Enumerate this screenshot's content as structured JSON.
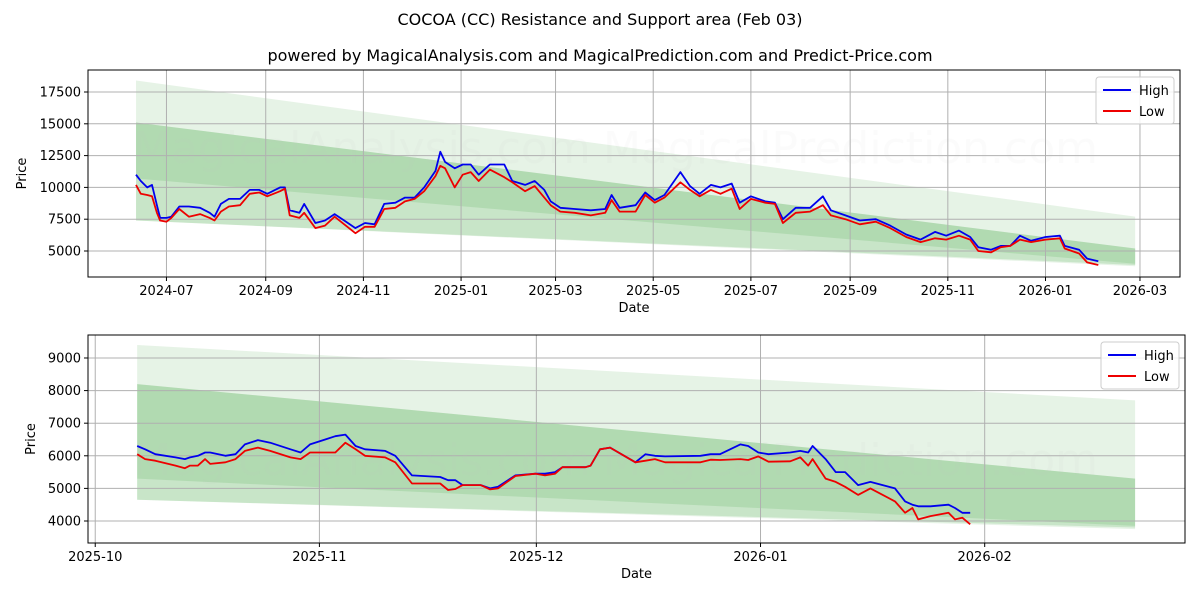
{
  "title": "COCOA (CC) Resistance and Support area (Feb 03)",
  "subtitle": "powered by MagicalAnalysis.com and MagicalPrediction.com and Predict-Price.com",
  "watermarks": [
    "MagicalAnalysis.com",
    "MagicalPrediction.com"
  ],
  "colors": {
    "high": "#0000ee",
    "low": "#ee0000",
    "band": "#2e9e2e"
  },
  "chart_data": [
    {
      "type": "line",
      "xlabel": "Date",
      "ylabel": "Price",
      "x_unit": "days since 2024-07-01",
      "xlim": [
        -49,
        633
      ],
      "ylim": [
        2956,
        19230
      ],
      "grid": true,
      "legend": "top-right",
      "xticks": {
        "values": [
          0,
          62,
          123,
          184,
          243,
          304,
          365,
          427,
          488,
          549,
          608
        ],
        "labels": [
          "2024-07",
          "2024-09",
          "2024-11",
          "2025-01",
          "2025-03",
          "2025-05",
          "2025-07",
          "2025-09",
          "2025-11",
          "2026-01",
          "2026-03"
        ]
      },
      "yticks": {
        "values": [
          5000,
          7500,
          10000,
          12500,
          15000,
          17500
        ],
        "labels": [
          "5000",
          "7500",
          "10000",
          "12500",
          "15000",
          "17500"
        ]
      },
      "bands": [
        {
          "name": "outer",
          "x": [
            -19,
            605
          ],
          "lower": [
            7400,
            3800
          ],
          "upper": [
            18400,
            7700
          ]
        },
        {
          "name": "middle",
          "x": [
            -19,
            605
          ],
          "lower": [
            7400,
            3900
          ],
          "upper": [
            15100,
            5200
          ]
        },
        {
          "name": "inner",
          "x": [
            -19,
            605
          ],
          "lower": [
            10700,
            4000
          ],
          "upper": [
            15100,
            5200
          ]
        }
      ],
      "x": [
        -19,
        -16,
        -12,
        -9,
        -6,
        -4,
        0,
        3,
        8,
        14,
        21,
        27,
        30,
        34,
        39,
        46,
        52,
        58,
        63,
        71,
        74,
        77,
        83,
        86,
        93,
        99,
        105,
        111,
        118,
        124,
        130,
        136,
        143,
        149,
        155,
        161,
        168,
        171,
        174,
        180,
        185,
        190,
        195,
        202,
        211,
        216,
        224,
        230,
        236,
        240,
        246,
        255,
        265,
        274,
        278,
        283,
        293,
        299,
        305,
        311,
        321,
        327,
        333,
        340,
        346,
        353,
        358,
        365,
        374,
        380,
        385,
        393,
        402,
        410,
        415,
        424,
        433,
        443,
        452,
        462,
        471,
        480,
        487,
        495,
        502,
        507,
        515,
        521,
        527,
        533,
        540,
        549,
        558,
        561,
        570,
        575,
        582
      ],
      "series": [
        {
          "name": "High",
          "values": [
            11000,
            10500,
            10000,
            10200,
            8600,
            7600,
            7600,
            7700,
            8500,
            8500,
            8400,
            8000,
            7700,
            8700,
            9100,
            9100,
            9800,
            9800,
            9500,
            10000,
            10000,
            8200,
            8000,
            8700,
            7200,
            7400,
            7900,
            7400,
            6800,
            7200,
            7100,
            8700,
            8800,
            9200,
            9200,
            10000,
            11300,
            12800,
            12000,
            11500,
            11800,
            11800,
            11000,
            11800,
            11800,
            10500,
            10200,
            10500,
            9800,
            8900,
            8400,
            8300,
            8200,
            8300,
            9400,
            8400,
            8600,
            9600,
            9000,
            9400,
            11200,
            10100,
            9500,
            10200,
            10000,
            10300,
            8800,
            9300,
            8900,
            8800,
            7500,
            8400,
            8400,
            9300,
            8200,
            7800,
            7400,
            7500,
            7000,
            6300,
            5900,
            6500,
            6200,
            6600,
            6100,
            5300,
            5100,
            5400,
            5400,
            6200,
            5800,
            6100,
            6200,
            5400,
            5100,
            4400,
            4200
          ]
        },
        {
          "name": "Low",
          "values": [
            10200,
            9500,
            9400,
            9300,
            8000,
            7400,
            7300,
            7600,
            8300,
            7700,
            7900,
            7600,
            7400,
            8100,
            8500,
            8600,
            9500,
            9600,
            9300,
            9700,
            9900,
            7800,
            7600,
            8000,
            6800,
            7000,
            7700,
            7100,
            6400,
            6900,
            6900,
            8300,
            8400,
            8900,
            9100,
            9700,
            10900,
            11700,
            11500,
            10000,
            11000,
            11200,
            10500,
            11400,
            10800,
            10400,
            9700,
            10100,
            9200,
            8600,
            8100,
            8000,
            7800,
            8000,
            9000,
            8100,
            8100,
            9400,
            8800,
            9200,
            10400,
            9800,
            9300,
            9800,
            9500,
            9900,
            8300,
            9100,
            8800,
            8700,
            7200,
            8000,
            8100,
            8600,
            7800,
            7500,
            7100,
            7300,
            6800,
            6100,
            5700,
            6000,
            5900,
            6200,
            5900,
            5000,
            4900,
            5300,
            5400,
            5900,
            5700,
            5900,
            6000,
            5200,
            4800,
            4100,
            3900
          ]
        }
      ]
    },
    {
      "type": "line",
      "xlabel": "Date",
      "ylabel": "Price",
      "x_unit": "days since 2025-10-01",
      "xlim": [
        -1,
        150.7
      ],
      "ylim": [
        3325,
        9705
      ],
      "grid": true,
      "legend": "top-right",
      "xticks": {
        "values": [
          0,
          31,
          61,
          92,
          123
        ],
        "labels": [
          "2025-10",
          "2025-11",
          "2025-12",
          "2026-01",
          "2026-02"
        ]
      },
      "yticks": {
        "values": [
          4000,
          5000,
          6000,
          7000,
          8000,
          9000
        ],
        "labels": [
          "4000",
          "5000",
          "6000",
          "7000",
          "8000",
          "9000"
        ]
      },
      "bands": [
        {
          "name": "outer",
          "x": [
            5.8,
            143.8
          ],
          "lower": [
            4650,
            3750
          ],
          "upper": [
            9400,
            7700
          ]
        },
        {
          "name": "middle",
          "x": [
            5.8,
            143.8
          ],
          "lower": [
            4650,
            3800
          ],
          "upper": [
            8200,
            5300
          ]
        },
        {
          "name": "inner",
          "x": [
            5.8,
            143.8
          ],
          "lower": [
            5300,
            3850
          ],
          "upper": [
            8200,
            5300
          ]
        }
      ],
      "x": [
        5.8,
        6.9,
        8.3,
        11.1,
        12.4,
        13.1,
        14.2,
        15.2,
        15.9,
        18,
        19.4,
        20.7,
        22.5,
        24.2,
        27,
        28.4,
        29.7,
        31.8,
        33.2,
        34.6,
        36,
        37.3,
        40.1,
        41.5,
        43.8,
        47.7,
        48.8,
        49.8,
        50.8,
        53.3,
        54.6,
        55.7,
        58.1,
        60.9,
        62.2,
        63.6,
        64.6,
        67.8,
        68.5,
        69.8,
        71.2,
        74.7,
        76.1,
        77.4,
        78.8,
        83.7,
        85.1,
        86.4,
        89.2,
        90.3,
        91.7,
        93.1,
        96.1,
        97.5,
        98.6,
        99.2,
        101,
        102.4,
        103.7,
        105.5,
        107.2,
        110.6,
        112,
        113,
        113.8,
        115.5,
        118,
        118.9,
        119.9,
        121
      ],
      "series": [
        {
          "name": "High",
          "values": [
            6300,
            6200,
            6050,
            5950,
            5900,
            5950,
            6000,
            6100,
            6100,
            6000,
            6050,
            6350,
            6480,
            6400,
            6200,
            6100,
            6350,
            6500,
            6600,
            6650,
            6300,
            6200,
            6150,
            6000,
            5400,
            5350,
            5250,
            5250,
            5100,
            5100,
            5000,
            5050,
            5400,
            5450,
            5450,
            5500,
            5650,
            5650,
            5700,
            6200,
            6250,
            5800,
            6050,
            6000,
            5980,
            6000,
            6050,
            6050,
            6350,
            6300,
            6100,
            6050,
            6100,
            6150,
            6100,
            6300,
            5900,
            5500,
            5500,
            5100,
            5200,
            5000,
            4600,
            4500,
            4450,
            4450,
            4500,
            4400,
            4250,
            4250
          ]
        },
        {
          "name": "Low",
          "values": [
            6050,
            5900,
            5850,
            5700,
            5620,
            5700,
            5700,
            5900,
            5750,
            5800,
            5900,
            6150,
            6250,
            6150,
            5950,
            5900,
            6100,
            6100,
            6100,
            6400,
            6200,
            6000,
            5950,
            5800,
            5150,
            5150,
            4950,
            4980,
            5100,
            5100,
            4970,
            5000,
            5380,
            5450,
            5400,
            5450,
            5650,
            5650,
            5700,
            6200,
            6250,
            5800,
            5850,
            5900,
            5800,
            5800,
            5880,
            5870,
            5900,
            5870,
            5980,
            5820,
            5830,
            5950,
            5700,
            5900,
            5300,
            5200,
            5050,
            4800,
            5000,
            4600,
            4250,
            4400,
            4050,
            4150,
            4250,
            4050,
            4100,
            3900
          ]
        }
      ]
    }
  ]
}
